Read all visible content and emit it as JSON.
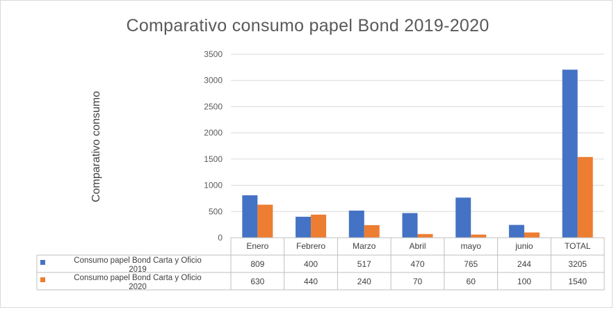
{
  "chart_data": {
    "type": "bar",
    "title": "Comparativo consumo papel Bond 2019-2020",
    "ylabel": "Comparativo consumo",
    "xlabel": "",
    "categories": [
      "Enero",
      "Febrero",
      "Marzo",
      "Abril",
      "mayo",
      "junio",
      "TOTAL"
    ],
    "ylim": [
      0,
      3500
    ],
    "yticks": [
      0,
      500,
      1000,
      1500,
      2000,
      2500,
      3000,
      3500
    ],
    "grid": true,
    "legend_placement": "data-table",
    "series": [
      {
        "name_lines": [
          "Consumo papel Bond Carta y Oficio",
          "2019"
        ],
        "color": "#4472c4",
        "values": [
          809,
          400,
          517,
          470,
          765,
          244,
          3205
        ],
        "labels": [
          "809",
          "400",
          "517",
          "470",
          "765",
          "244",
          "3205"
        ]
      },
      {
        "name_lines": [
          "Consumo papel Bond Carta y Oficio",
          "2020"
        ],
        "color": "#ed7d31",
        "values": [
          630,
          440,
          240,
          70,
          60,
          100,
          1540
        ],
        "labels": [
          "630",
          "440",
          "240",
          "70",
          "60",
          "100",
          "1540"
        ]
      }
    ]
  }
}
